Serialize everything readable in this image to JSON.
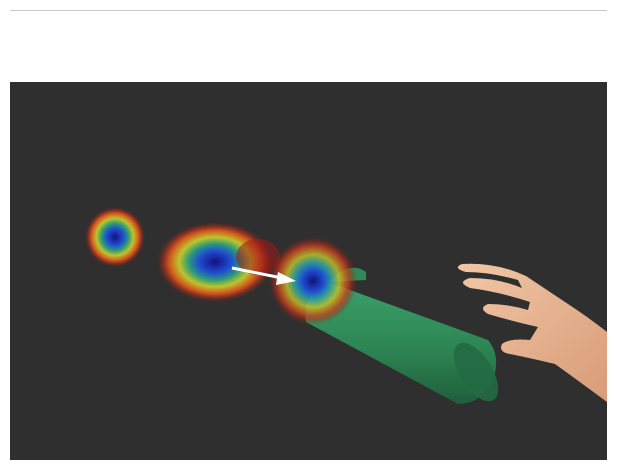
{
  "figure": {
    "background_color": "#2f2f2f",
    "heatmap_colors": [
      "#1b1aa0",
      "#1f5fd0",
      "#2aa86a",
      "#c8c82a",
      "#d04a1e",
      "#a01818"
    ],
    "arrow_color": "#ffffff",
    "object_color": "#2f8a55",
    "hand_color": "#e8b896"
  }
}
